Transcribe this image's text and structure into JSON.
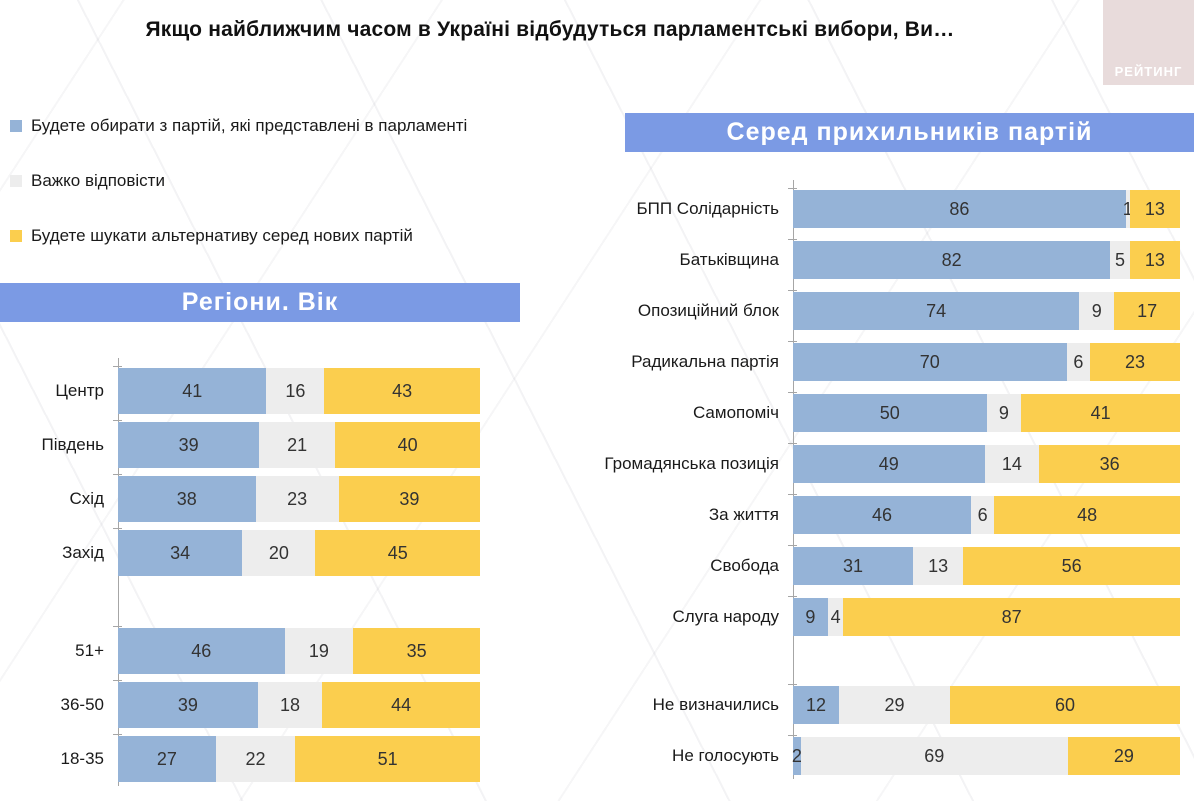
{
  "header": {
    "title": "Якщо найближчим часом в Україні відбудуться парламентські вибори, Ви…",
    "logo_text": "РЕЙТИНГ"
  },
  "colors": {
    "parliament_parties": "#95B3D7",
    "hard_to_answer": "#EDEDED",
    "new_parties": "#FBCE4E",
    "banner": "#7B9AE4",
    "logo_bg": "#E8DBDB"
  },
  "legend": {
    "items": [
      {
        "key": "parliament-parties",
        "label": "Будете обирати з партій, які представлені в парламенті",
        "color": "#95B3D7"
      },
      {
        "key": "hard-to-answer",
        "label": "Важко відповісти",
        "color": "#EDEDED"
      },
      {
        "key": "new-parties",
        "label": "Будете шукати альтернативу серед нових партій",
        "color": "#FBCE4E"
      }
    ]
  },
  "chart_data": [
    {
      "type": "bar",
      "orientation": "horizontal",
      "stacked": true,
      "values_are_percent": true,
      "x_range": [
        0,
        100
      ],
      "title": "Регіони. Вік",
      "series_names": [
        "Будете обирати з партій, які представлені в парламенті",
        "Важко відповісти",
        "Будете шукати альтернативу серед нових партій"
      ],
      "colors": [
        "#95B3D7",
        "#EDEDED",
        "#FBCE4E"
      ],
      "sections": [
        {
          "name": "regions",
          "rows": [
            {
              "label": "Центр",
              "values": [
                41,
                16,
                43
              ]
            },
            {
              "label": "Південь",
              "values": [
                39,
                21,
                40
              ]
            },
            {
              "label": "Схід",
              "values": [
                38,
                23,
                39
              ]
            },
            {
              "label": "Захід",
              "values": [
                34,
                20,
                45
              ]
            }
          ]
        },
        {
          "name": "age",
          "rows": [
            {
              "label": "51+",
              "values": [
                46,
                19,
                35
              ]
            },
            {
              "label": "36-50",
              "values": [
                39,
                18,
                44
              ]
            },
            {
              "label": "18-35",
              "values": [
                27,
                22,
                51
              ]
            }
          ]
        }
      ]
    },
    {
      "type": "bar",
      "orientation": "horizontal",
      "stacked": true,
      "values_are_percent": true,
      "x_range": [
        0,
        100
      ],
      "title": "Серед прихильників партій",
      "series_names": [
        "Будете обирати з партій, які представлені в парламенті",
        "Важко відповісти",
        "Будете шукати альтернативу серед нових партій"
      ],
      "colors": [
        "#95B3D7",
        "#EDEDED",
        "#FBCE4E"
      ],
      "sections": [
        {
          "name": "parties",
          "rows": [
            {
              "label": "БПП Солідарність",
              "values": [
                86,
                1,
                13
              ]
            },
            {
              "label": "Батьківщина",
              "values": [
                82,
                5,
                13
              ]
            },
            {
              "label": "Опозиційний блок",
              "values": [
                74,
                9,
                17
              ]
            },
            {
              "label": "Радикальна партія",
              "values": [
                70,
                6,
                23
              ]
            },
            {
              "label": "Самопоміч",
              "values": [
                50,
                9,
                41
              ]
            },
            {
              "label": "Громадянська позиція",
              "values": [
                49,
                14,
                36
              ]
            },
            {
              "label": "За життя",
              "values": [
                46,
                6,
                48
              ]
            },
            {
              "label": "Свобода",
              "values": [
                31,
                13,
                56
              ]
            },
            {
              "label": "Слуга народу",
              "values": [
                9,
                4,
                87
              ]
            }
          ]
        },
        {
          "name": "non-voters",
          "rows": [
            {
              "label": "Не визначились",
              "values": [
                12,
                29,
                60
              ]
            },
            {
              "label": "Не голосують",
              "values": [
                2,
                69,
                29
              ]
            }
          ]
        }
      ]
    }
  ]
}
